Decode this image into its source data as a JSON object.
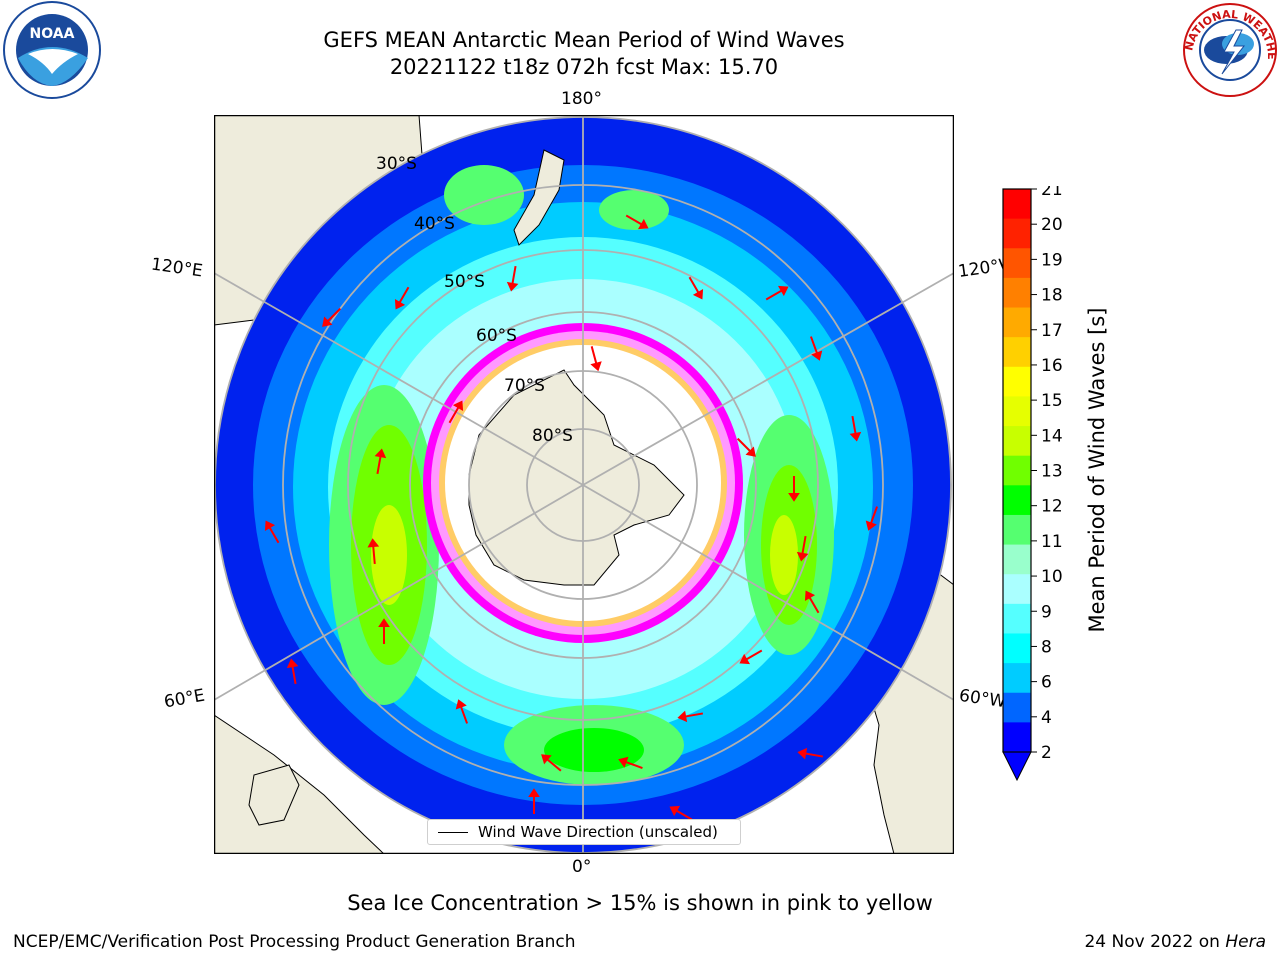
{
  "header": {
    "title_line1": "GEFS MEAN Antarctic Mean Period of Wind Waves",
    "title_line2": "20221122 t18z 072h fcst   Max: 15.70"
  },
  "map": {
    "projection": "south-polar-stereographic",
    "meridian_labels": {
      "top": "180°",
      "bottom": "0°",
      "upper_left": "120°E",
      "upper_right": "120°W",
      "lower_left": "60°E",
      "lower_right": "60°W"
    },
    "parallel_labels": [
      "30°S",
      "40°S",
      "50°S",
      "60°S",
      "70°S",
      "80°S"
    ],
    "colors": {
      "land": "#eeecdc",
      "ocean_none": "#ffffff",
      "grid": "#b0b0b0",
      "arrow": "#ff0000",
      "sea_ice": [
        "#ff00ff",
        "#ff99ff",
        "#ffcc66",
        "#ffff00"
      ]
    },
    "arrow_label": "Wind Wave Direction (unscaled)"
  },
  "colorbar": {
    "label": "Mean Period of Wind Waves [s]",
    "ticks": [
      "21",
      "20",
      "19",
      "18",
      "17",
      "16",
      "15",
      "14",
      "13",
      "12",
      "11",
      "10",
      "9",
      "8",
      "6",
      "4",
      "2"
    ],
    "colors": [
      "#ff0000",
      "#ff2200",
      "#ff5500",
      "#ff8000",
      "#ffaa00",
      "#ffd000",
      "#ffff00",
      "#e6ff00",
      "#c8ff00",
      "#70ff00",
      "#00ff00",
      "#55ff70",
      "#99ffcc",
      "#aaffff",
      "#55ffff",
      "#00ffff",
      "#00ccff",
      "#0066ff",
      "#0000ff"
    ],
    "extend": "min"
  },
  "note": "Sea Ice Concentration > 15% is shown in pink to yellow",
  "footer": {
    "left": "NCEP/EMC/Verification Post Processing Product Generation Branch",
    "right_prefix": "24 Nov 2022 on ",
    "right_host": "Hera"
  },
  "logos": {
    "noaa": "NOAA",
    "nws": "NATIONAL WEATHER SERVICE"
  }
}
